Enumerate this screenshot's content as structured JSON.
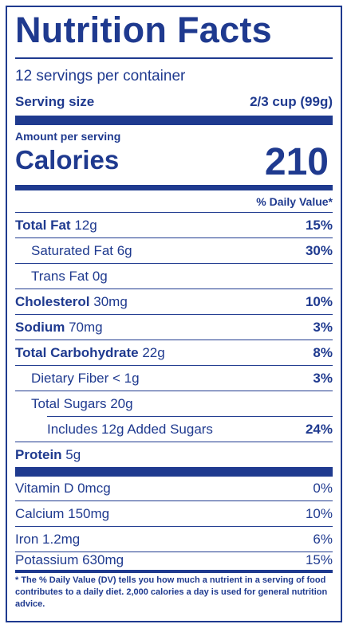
{
  "title": "Nutrition Facts",
  "servings_per_container": "12 servings per container",
  "serving_size": {
    "label": "Serving size",
    "value": "2/3 cup (99g)"
  },
  "amount_per_serving": "Amount per serving",
  "calories": {
    "label": "Calories",
    "value": "210"
  },
  "daily_value_header": "% Daily Value*",
  "nutrients": [
    {
      "name": "Total Fat",
      "amount": "12g",
      "dv": "15%"
    },
    {
      "name": "Saturated Fat 6g",
      "amount": "",
      "dv": "30%"
    },
    {
      "name": "Trans Fat 0g",
      "amount": "",
      "dv": ""
    },
    {
      "name": "Cholesterol",
      "amount": "30mg",
      "dv": "10%"
    },
    {
      "name": "Sodium",
      "amount": "70mg",
      "dv": "3%"
    },
    {
      "name": "Total Carbohydrate",
      "amount": "22g",
      "dv": "8%"
    },
    {
      "name": "Dietary Fiber < 1g",
      "amount": "",
      "dv": "3%"
    },
    {
      "name": "Total Sugars 20g",
      "amount": "",
      "dv": ""
    },
    {
      "name": "Includes 12g Added Sugars",
      "amount": "",
      "dv": "24%"
    },
    {
      "name": "Protein",
      "amount": "5g",
      "dv": ""
    }
  ],
  "vitamins": [
    {
      "name": "Vitamin D 0mcg",
      "dv": "0%"
    },
    {
      "name": "Calcium 150mg",
      "dv": "10%"
    },
    {
      "name": "Iron 1.2mg",
      "dv": "6%"
    },
    {
      "name": "Potassium 630mg",
      "dv": "15%"
    }
  ],
  "footnote": "* The % Daily Value (DV) tells you how much a nutrient in a serving of food contributes to a daily diet. 2,000 calories a day is used for general nutrition advice.",
  "colors": {
    "ink": "#1f3a8f",
    "background": "#ffffff"
  }
}
